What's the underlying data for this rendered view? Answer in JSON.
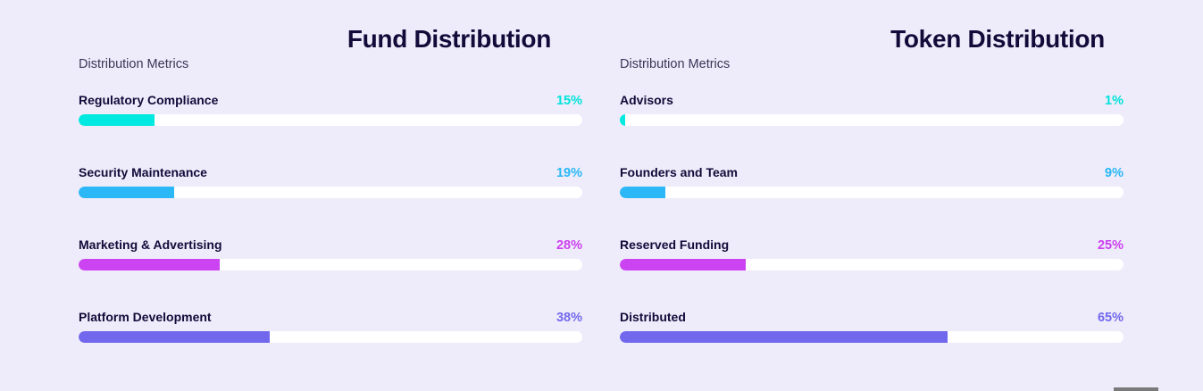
{
  "fund": {
    "title": "Fund Distribution",
    "subtitle": "Distribution Metrics",
    "metrics": [
      {
        "label": "Regulatory Compliance",
        "value": "15%",
        "percent": 15,
        "color": "#00e9e0"
      },
      {
        "label": "Security Maintenance",
        "value": "19%",
        "percent": 19,
        "color": "#2cb7f7"
      },
      {
        "label": "Marketing & Advertising",
        "value": "28%",
        "percent": 28,
        "color": "#cc43f2"
      },
      {
        "label": "Platform Development",
        "value": "38%",
        "percent": 38,
        "color": "#7268ee"
      }
    ]
  },
  "token": {
    "title": "Token Distribution",
    "subtitle": "Distribution Metrics",
    "metrics": [
      {
        "label": "Advisors",
        "value": "1%",
        "percent": 1,
        "color": "#00e9e0"
      },
      {
        "label": "Founders and Team",
        "value": "9%",
        "percent": 9,
        "color": "#2cb7f7"
      },
      {
        "label": "Reserved Funding",
        "value": "25%",
        "percent": 25,
        "color": "#cc43f2"
      },
      {
        "label": "Distributed",
        "value": "65%",
        "percent": 65,
        "color": "#7268ee"
      }
    ]
  }
}
